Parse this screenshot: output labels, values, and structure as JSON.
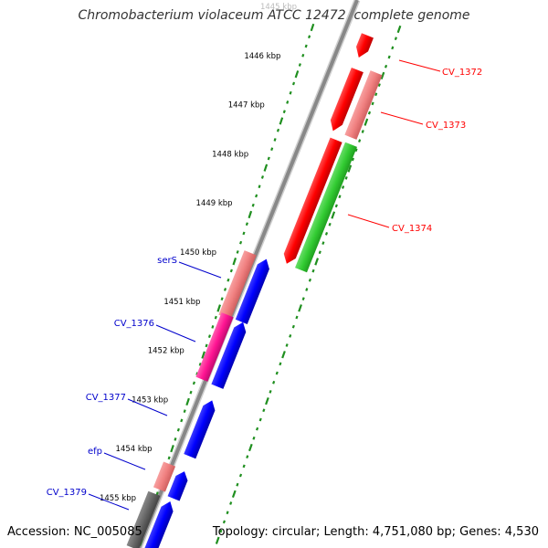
{
  "title": "Chromobacterium violaceum ATCC 12472, complete genome",
  "footer": {
    "accession": "Accession: NC_005085",
    "topology": "Topology: circular; Length: 4,751,080 bp; Genes: 4,530"
  },
  "ticks": [
    "1445 kbp",
    "1446 kbp",
    "1447 kbp",
    "1448 kbp",
    "1449 kbp",
    "1450 kbp",
    "1451 kbp",
    "1452 kbp",
    "1453 kbp",
    "1454 kbp",
    "1455 kbp"
  ],
  "colors": {
    "backbone": "#8c8c8c",
    "ruler": "#1f8f1f",
    "cds_red": "#ff0000",
    "cds_light_red": "#f08080",
    "cds_green": "#33cc33",
    "cds_blue": "#0000ff",
    "cds_magenta": "#ff1493",
    "cds_gray": "#666666",
    "label_red": "#ff0000",
    "label_blue": "#0000cc"
  },
  "labels_right": [
    "CV_1372",
    "CV_1373",
    "CV_1374"
  ],
  "labels_left": [
    "serS",
    "CV_1376",
    "CV_1377",
    "efp",
    "CV_1379"
  ]
}
